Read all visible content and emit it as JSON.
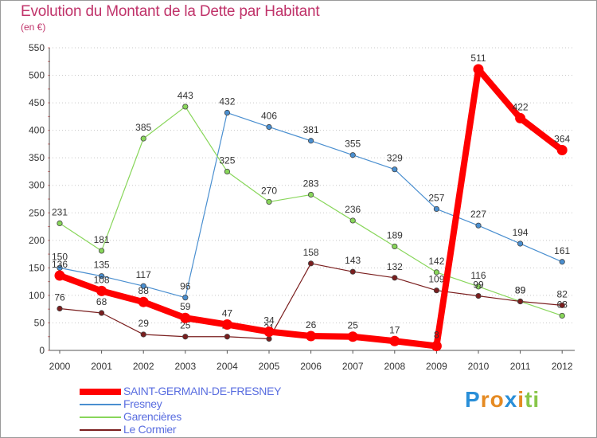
{
  "header": {
    "title": "Evolution du Montant de la Dette par Habitant",
    "subtitle": "(en €)"
  },
  "legend": [
    {
      "label": "SAINT-GERMAIN-DE-FRESNEY",
      "color": "#ff0000"
    },
    {
      "label": "Fresney",
      "color": "#4a8fd0"
    },
    {
      "label": "Garencières",
      "color": "#88d65a"
    },
    {
      "label": "Le Cormier",
      "color": "#7a1e1e"
    }
  ],
  "logo": {
    "letters": [
      "P",
      "r",
      "o",
      "x",
      "i",
      "t",
      "i"
    ],
    "colors": [
      "#2a8fd8",
      "#e58a22",
      "#e58a22",
      "#2a8fd8",
      "#e58a22",
      "#88c64a",
      "#88c64a"
    ]
  },
  "chart_data": {
    "type": "line",
    "x": [
      "2000",
      "2001",
      "2002",
      "2003",
      "2004",
      "2005",
      "2006",
      "2007",
      "2008",
      "2009",
      "2010",
      "2011",
      "2012"
    ],
    "yticks": [
      "0",
      "50",
      "100",
      "150",
      "200",
      "250",
      "300",
      "350",
      "400",
      "450",
      "500",
      "550"
    ],
    "ylim": [
      0,
      550
    ],
    "grid": "horizontal-dotted",
    "legend_position": "bottom-left",
    "series": [
      {
        "name": "Fresney",
        "color": "#4a8fd0",
        "values": [
          150,
          135,
          117,
          96,
          432,
          406,
          381,
          355,
          329,
          257,
          227,
          194,
          161
        ],
        "labels": [
          "150",
          "135",
          "117",
          "96",
          "432",
          "406",
          "381",
          "355",
          "329",
          "257",
          "227",
          "194",
          "161"
        ]
      },
      {
        "name": "Garencières",
        "color": "#88d65a",
        "values": [
          231,
          181,
          385,
          443,
          325,
          270,
          283,
          236,
          189,
          142,
          116,
          89,
          63
        ],
        "labels": [
          "231",
          "181",
          "385",
          "443",
          "325",
          "270",
          "283",
          "236",
          "189",
          "142",
          "116",
          "89",
          "63"
        ]
      },
      {
        "name": "Le Cormier",
        "color": "#7a1e1e",
        "values": [
          76,
          68,
          29,
          25,
          25,
          21,
          158,
          143,
          132,
          109,
          99,
          89,
          82
        ],
        "labels": [
          "76",
          "68",
          "29",
          "25",
          "25",
          "21",
          "158",
          "143",
          "132",
          "109",
          "99",
          "89",
          "82"
        ]
      },
      {
        "name": "SAINT-GERMAIN-DE-FRESNEY",
        "color": "#ff0000",
        "values": [
          136,
          108,
          88,
          59,
          47,
          34,
          26,
          25,
          17,
          8,
          511,
          422,
          364
        ],
        "labels": [
          "136",
          "108",
          "88",
          "59",
          "47",
          "34",
          "26",
          "25",
          "17",
          "8",
          "511",
          "422",
          "364"
        ]
      }
    ]
  }
}
